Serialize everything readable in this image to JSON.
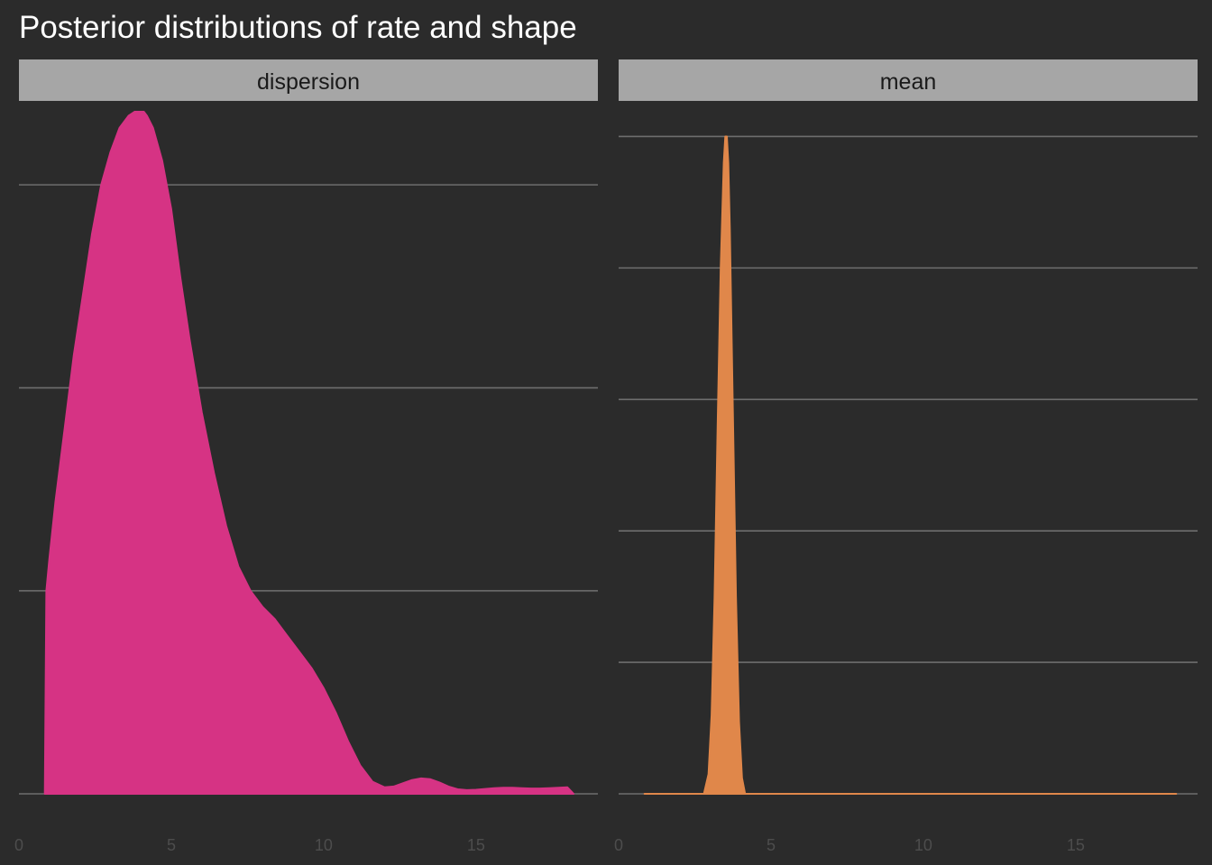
{
  "chart_data": {
    "type": "area",
    "title": "Posterior distributions of rate and shape",
    "xlabel": "",
    "ylabel": "",
    "x_ticks": [
      0,
      5,
      10,
      15
    ],
    "xlim": [
      0,
      19
    ],
    "grid": "horizontal major lines only",
    "background": "#2b2b2b",
    "panels": [
      {
        "name": "dispersion",
        "color": "#d63384",
        "ylim": [
          0,
          0.17
        ],
        "y_gridlines": [
          0,
          0.05,
          0.1,
          0.15
        ],
        "x": [
          0.85,
          0.9,
          1.0,
          1.2,
          1.5,
          1.8,
          2.1,
          2.4,
          2.7,
          3.0,
          3.3,
          3.6,
          3.8,
          4.0,
          4.1,
          4.2,
          4.4,
          4.7,
          5.0,
          5.3,
          5.6,
          6.0,
          6.4,
          6.8,
          7.2,
          7.6,
          8.0,
          8.4,
          8.8,
          9.2,
          9.6,
          10.0,
          10.4,
          10.8,
          11.2,
          11.6,
          12.0,
          12.3,
          12.6,
          12.9,
          13.2,
          13.5,
          13.8,
          14.1,
          14.4,
          14.7,
          15.0,
          15.3,
          15.6,
          15.9,
          16.2,
          16.5,
          16.8,
          17.1,
          17.4,
          17.7,
          18.0,
          18.2
        ],
        "y": [
          0,
          0.05,
          0.058,
          0.072,
          0.09,
          0.108,
          0.123,
          0.138,
          0.15,
          0.158,
          0.164,
          0.167,
          0.168,
          0.168,
          0.168,
          0.167,
          0.164,
          0.156,
          0.144,
          0.127,
          0.112,
          0.094,
          0.079,
          0.066,
          0.056,
          0.05,
          0.046,
          0.043,
          0.039,
          0.035,
          0.031,
          0.026,
          0.02,
          0.013,
          0.007,
          0.003,
          0.0016,
          0.0018,
          0.0026,
          0.0034,
          0.0038,
          0.0036,
          0.0028,
          0.0018,
          0.0011,
          0.0009,
          0.001,
          0.0012,
          0.0014,
          0.0015,
          0.0015,
          0.0014,
          0.0013,
          0.0013,
          0.0014,
          0.0015,
          0.0016,
          0
        ]
      },
      {
        "name": "mean",
        "color": "#e0874a",
        "ylim": [
          0,
          5.25
        ],
        "y_gridlines": [
          0,
          1,
          2,
          3,
          4,
          5
        ],
        "x": [
          0.85,
          2.8,
          2.95,
          3.05,
          3.15,
          3.25,
          3.35,
          3.45,
          3.5,
          3.55,
          3.6,
          3.65,
          3.75,
          3.85,
          3.95,
          4.05,
          4.15,
          4.3,
          18.3
        ],
        "y": [
          0,
          0,
          0.15,
          0.6,
          1.5,
          2.8,
          4.0,
          4.8,
          5.0,
          5.0,
          4.8,
          4.3,
          2.9,
          1.5,
          0.55,
          0.12,
          0,
          0,
          0
        ]
      }
    ]
  }
}
